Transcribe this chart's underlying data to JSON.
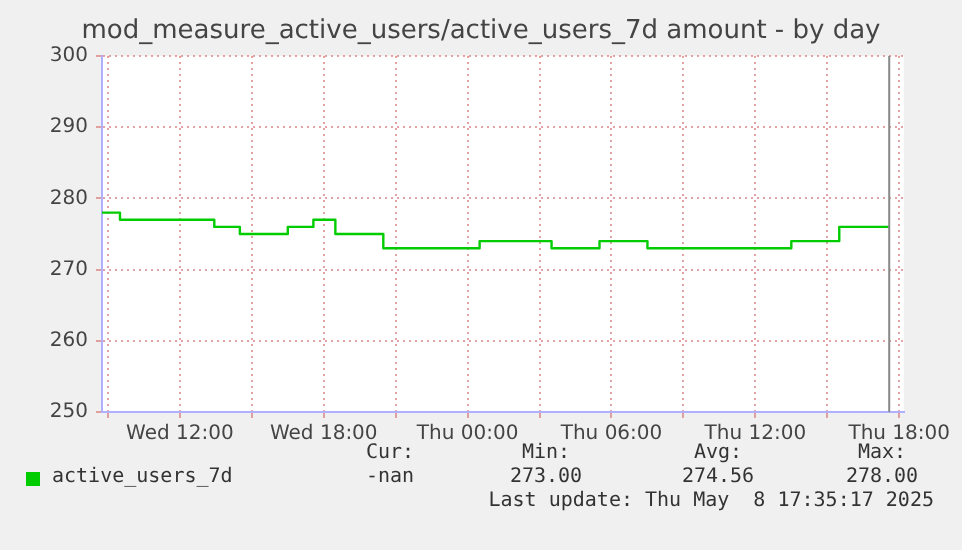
{
  "chart_data": {
    "type": "step",
    "title": "mod_measure_active_users/active_users_7d amount - by day",
    "x": [
      "2025-05-07T08:45",
      "2025-05-07T09:30",
      "2025-05-07T13:26",
      "2025-05-07T14:30",
      "2025-05-07T16:30",
      "2025-05-07T17:34",
      "2025-05-07T18:29",
      "2025-05-07T20:29",
      "2025-05-08T00:30",
      "2025-05-08T03:30",
      "2025-05-08T05:30",
      "2025-05-08T07:30",
      "2025-05-08T13:30",
      "2025-05-08T15:30",
      "2025-05-08T17:35"
    ],
    "series": [
      {
        "name": "active_users_7d",
        "color": "#00cc00",
        "values": [
          278,
          277,
          276,
          275,
          276,
          277,
          275,
          273,
          274,
          273,
          274,
          273,
          274,
          276,
          276
        ]
      }
    ],
    "xlim": [
      "2025-05-07T08:45",
      "2025-05-08T18:12"
    ],
    "xticks": [
      {
        "value": "2025-05-07T09:00",
        "label": null
      },
      {
        "value": "2025-05-07T12:00",
        "label": "Wed 12:00"
      },
      {
        "value": "2025-05-07T15:00",
        "label": null
      },
      {
        "value": "2025-05-07T18:00",
        "label": "Wed 18:00"
      },
      {
        "value": "2025-05-07T21:00",
        "label": null
      },
      {
        "value": "2025-05-08T00:00",
        "label": "Thu 00:00"
      },
      {
        "value": "2025-05-08T03:00",
        "label": null
      },
      {
        "value": "2025-05-08T06:00",
        "label": "Thu 06:00"
      },
      {
        "value": "2025-05-08T09:00",
        "label": null
      },
      {
        "value": "2025-05-08T12:00",
        "label": "Thu 12:00"
      },
      {
        "value": "2025-05-08T15:00",
        "label": null
      },
      {
        "value": "2025-05-08T18:00",
        "label": "Thu 18:00"
      }
    ],
    "ylim": [
      250,
      300
    ],
    "yticks": [
      250,
      260,
      270,
      280,
      290,
      300
    ],
    "ref_lines": [
      {
        "axis": "x",
        "value": "2025-05-08T17:35",
        "color": "#888888"
      }
    ],
    "grid": true,
    "legend": "bottom",
    "marker": "none",
    "line_style": "solid",
    "annotations": [
      "Cur:",
      "Min:",
      "Avg:",
      "Max:",
      "-nan",
      "273.00",
      "274.56",
      "278.00",
      "Last update: Thu May  8 17:35:17 2025"
    ]
  }
}
